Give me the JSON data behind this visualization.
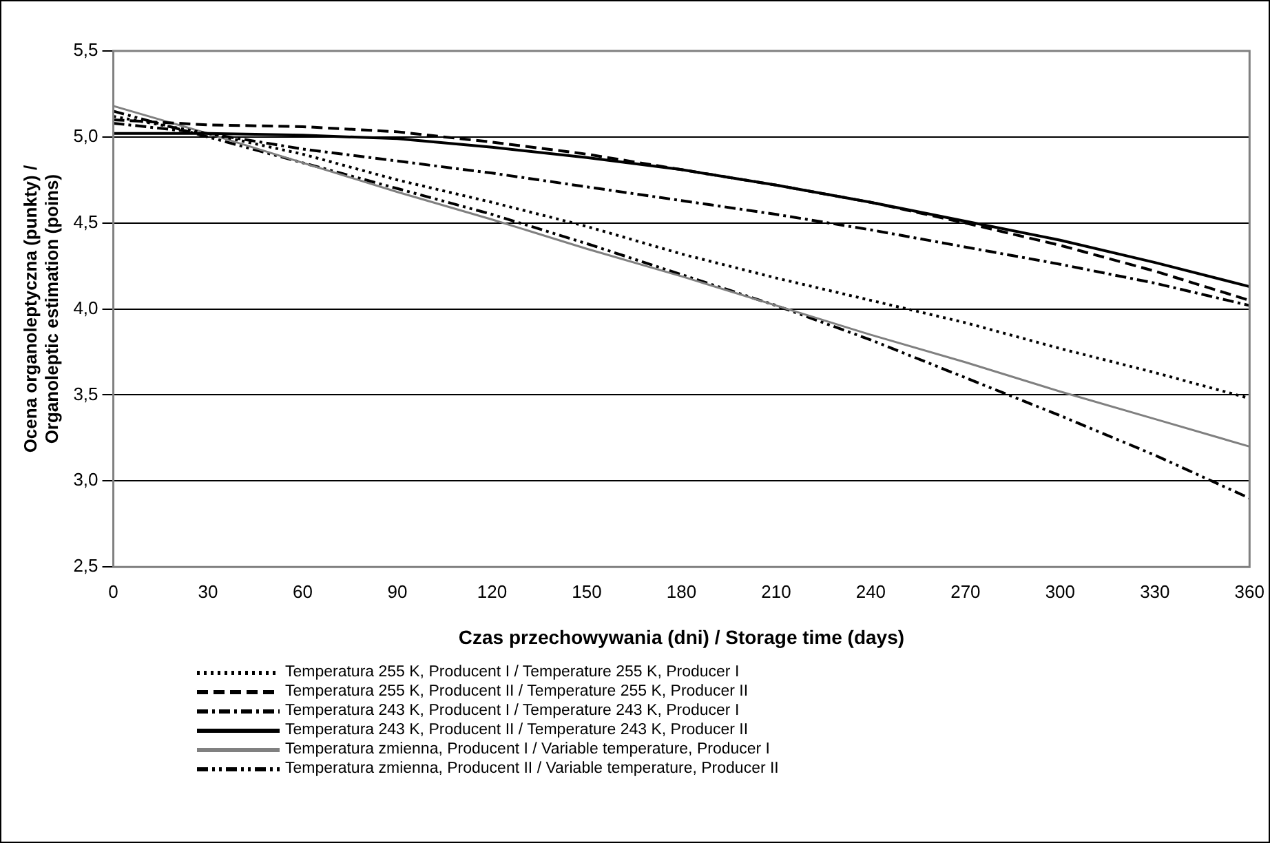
{
  "chart_data": {
    "type": "line",
    "xlabel": "Czas przechowywania (dni) / Storage time (days)",
    "ylabel": "Ocena organoleptyczna (punkty) / Organoleptic estimation (poins)",
    "x": [
      0,
      30,
      60,
      90,
      120,
      150,
      180,
      210,
      240,
      270,
      300,
      330,
      360
    ],
    "xlim": [
      0,
      360
    ],
    "xticks": [
      0,
      30,
      60,
      90,
      120,
      150,
      180,
      210,
      240,
      270,
      300,
      330,
      360
    ],
    "ylim": [
      2.5,
      5.5
    ],
    "yticks": [
      {
        "value": 2.5,
        "label": "2,5"
      },
      {
        "value": 3,
        "label": "3,0"
      },
      {
        "value": 3.5,
        "label": "3,5"
      },
      {
        "value": 4,
        "label": "4,0"
      },
      {
        "value": 4.5,
        "label": "4,5"
      },
      {
        "value": 5,
        "label": "5,0"
      },
      {
        "value": 5.5,
        "label": "5,5"
      }
    ],
    "grid": "y",
    "legend": "bottom",
    "marker": "none",
    "series": [
      {
        "name": "Temperatura 255 K, Producent I / Temperature 255 K, Producer I",
        "color": "#000000",
        "line_style": "dotted",
        "values": [
          5.12,
          5.02,
          4.9,
          4.75,
          4.62,
          4.48,
          4.32,
          4.18,
          4.05,
          3.92,
          3.77,
          3.63,
          3.48
        ]
      },
      {
        "name": "Temperatura 255 K, Producent II / Temperature 255 K, Producer II",
        "color": "#000000",
        "line_style": "dashed",
        "values": [
          5.1,
          5.07,
          5.06,
          5.03,
          4.97,
          4.9,
          4.81,
          4.72,
          4.62,
          4.5,
          4.37,
          4.22,
          4.05
        ]
      },
      {
        "name": "Temperatura 243 K, Producent I / Temperature 243 K, Producer I",
        "color": "#000000",
        "line_style": "dashdot",
        "values": [
          5.08,
          5.02,
          4.93,
          4.86,
          4.79,
          4.71,
          4.63,
          4.55,
          4.46,
          4.36,
          4.26,
          4.15,
          4.02
        ]
      },
      {
        "name": "Temperatura 243 K, Producent II / Temperature 243 K, Producer II",
        "color": "#000000",
        "line_style": "solid",
        "values": [
          5.02,
          5.02,
          5.01,
          4.99,
          4.94,
          4.88,
          4.81,
          4.72,
          4.62,
          4.51,
          4.4,
          4.27,
          4.13
        ]
      },
      {
        "name": "Temperatura zmienna, Producent I / Variable temperature, Producer I",
        "color": "#808080",
        "line_style": "solid",
        "values": [
          5.18,
          5.02,
          4.85,
          4.68,
          4.52,
          4.35,
          4.19,
          4.02,
          3.85,
          3.69,
          3.52,
          3.36,
          3.2
        ]
      },
      {
        "name": "Temperatura zmienna, Producent II / Variable temperature, Producer II",
        "color": "#000000",
        "line_style": "dashdotdot",
        "values": [
          5.15,
          5.0,
          4.85,
          4.7,
          4.55,
          4.38,
          4.2,
          4.02,
          3.82,
          3.6,
          3.38,
          3.15,
          2.9
        ]
      }
    ]
  }
}
